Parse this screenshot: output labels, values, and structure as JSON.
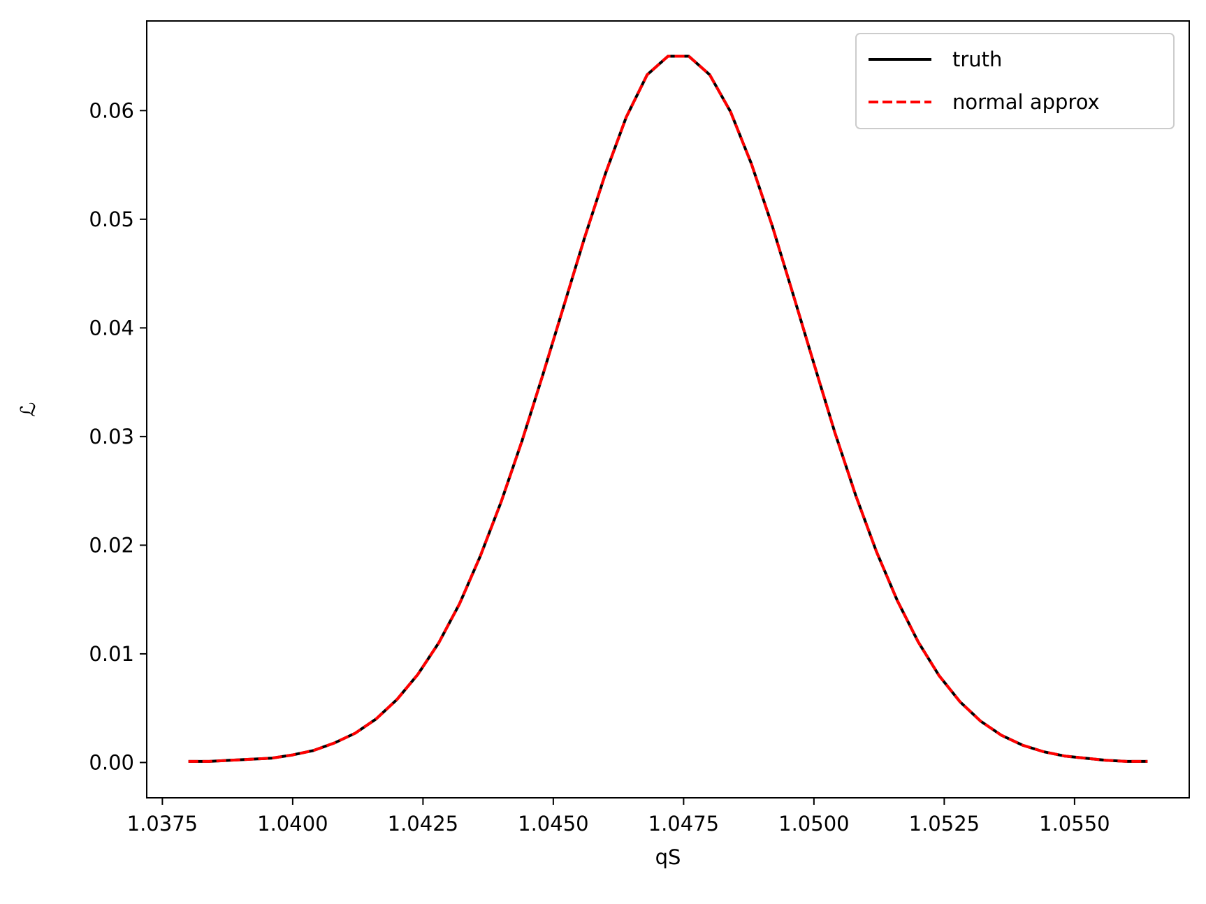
{
  "chart_data": {
    "type": "line",
    "title": "",
    "xlabel": "qS",
    "ylabel": "ℒ",
    "xlim": [
      1.0372,
      1.0572
    ],
    "ylim": [
      -0.00325,
      0.06825
    ],
    "xticks": [
      1.0375,
      1.04,
      1.0425,
      1.045,
      1.0475,
      1.05,
      1.0525,
      1.055
    ],
    "xtick_labels": [
      "1.0375",
      "1.0400",
      "1.0425",
      "1.0450",
      "1.0475",
      "1.0500",
      "1.0525",
      "1.0550"
    ],
    "yticks": [
      0.0,
      0.01,
      0.02,
      0.03,
      0.04,
      0.05,
      0.06
    ],
    "ytick_labels": [
      "0.00",
      "0.01",
      "0.02",
      "0.03",
      "0.04",
      "0.05",
      "0.06"
    ],
    "grid": false,
    "legend": {
      "position": "top-right"
    },
    "x": [
      1.038,
      1.0384,
      1.0388,
      1.0392,
      1.0396,
      1.04,
      1.0404,
      1.0408,
      1.0412,
      1.0416,
      1.042,
      1.0424,
      1.0428,
      1.0432,
      1.0436,
      1.044,
      1.0444,
      1.0448,
      1.0452,
      1.0456,
      1.046,
      1.0464,
      1.0468,
      1.0472,
      1.0476,
      1.048,
      1.0484,
      1.0488,
      1.0492,
      1.0496,
      1.05,
      1.0504,
      1.0508,
      1.0512,
      1.0516,
      1.052,
      1.0524,
      1.0528,
      1.0532,
      1.0536,
      1.054,
      1.0544,
      1.0548,
      1.0552,
      1.0556,
      1.056,
      1.0564
    ],
    "series": [
      {
        "name": "truth",
        "color": "#000000",
        "style": "solid",
        "values": [
          0.0001,
          0.0001,
          0.0002,
          0.0003,
          0.0004,
          0.0007,
          0.0011,
          0.0018,
          0.0027,
          0.004,
          0.0058,
          0.0081,
          0.011,
          0.0146,
          0.019,
          0.024,
          0.0296,
          0.0357,
          0.042,
          0.0483,
          0.0542,
          0.0594,
          0.0633,
          0.065,
          0.065,
          0.0633,
          0.0599,
          0.0551,
          0.0494,
          0.0431,
          0.0367,
          0.0304,
          0.0246,
          0.0194,
          0.0149,
          0.0111,
          0.008,
          0.0056,
          0.0038,
          0.0025,
          0.0016,
          0.001,
          0.0006,
          0.0004,
          0.0002,
          0.0001,
          0.0001
        ]
      },
      {
        "name": "normal approx",
        "color": "#ff0000",
        "style": "dashed",
        "values": [
          0.0001,
          0.0001,
          0.0002,
          0.0003,
          0.0004,
          0.0007,
          0.0011,
          0.0018,
          0.0027,
          0.004,
          0.0058,
          0.0081,
          0.011,
          0.0146,
          0.019,
          0.024,
          0.0296,
          0.0357,
          0.042,
          0.0483,
          0.0542,
          0.0594,
          0.0633,
          0.065,
          0.065,
          0.0633,
          0.0599,
          0.0551,
          0.0494,
          0.0431,
          0.0367,
          0.0304,
          0.0246,
          0.0194,
          0.0149,
          0.0111,
          0.008,
          0.0056,
          0.0038,
          0.0025,
          0.0016,
          0.001,
          0.0006,
          0.0004,
          0.0002,
          0.0001,
          0.0001
        ]
      }
    ]
  }
}
